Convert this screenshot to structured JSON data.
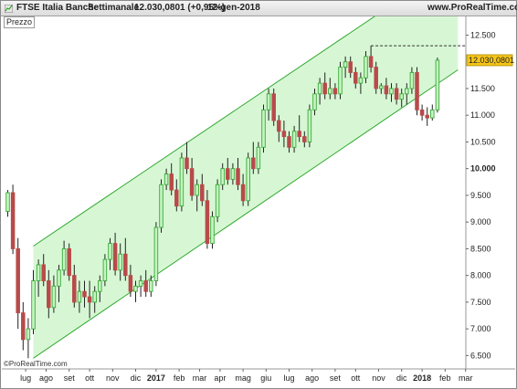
{
  "header": {
    "instrument": "FTSE Italia Banche",
    "timeframe": "Settimanale",
    "last_value": "12.030,0801 (+0,95%)",
    "date": "12-gen-2018",
    "site": "www.ProRealTime.com"
  },
  "panel_label": "Prezzo",
  "watermark": "©ProRealTime.com",
  "chart_data": {
    "type": "candlestick",
    "title": "FTSE Italia Banche",
    "period": "Settimanale",
    "ylim": [
      6250,
      12850
    ],
    "y_ticks": [
      {
        "value": 12500,
        "label": "12.500"
      },
      {
        "value": 11500,
        "label": "11.500"
      },
      {
        "value": 11000,
        "label": "11.000"
      },
      {
        "value": 10500,
        "label": "10.500"
      },
      {
        "value": 10000,
        "label": "10.000",
        "bold": true
      },
      {
        "value": 9500,
        "label": "9.500"
      },
      {
        "value": 9000,
        "label": "9.000"
      },
      {
        "value": 8500,
        "label": "8.500"
      },
      {
        "value": 8000,
        "label": "8.000"
      },
      {
        "value": 7500,
        "label": "7.500"
      },
      {
        "value": 7000,
        "label": "7.000"
      },
      {
        "value": 6500,
        "label": "6.500"
      }
    ],
    "current_price": {
      "value": 12030.08,
      "label": "12.030,0801",
      "color": "#f5c518"
    },
    "resistance_level": 12300,
    "x_ticks": [
      {
        "label": "lug",
        "index": 3.5
      },
      {
        "label": "ago",
        "index": 7.5
      },
      {
        "label": "set",
        "index": 12
      },
      {
        "label": "ott",
        "index": 16
      },
      {
        "label": "nov",
        "index": 20.5
      },
      {
        "label": "dic",
        "index": 25
      },
      {
        "label": "2017",
        "index": 29,
        "bold": true
      },
      {
        "label": "feb",
        "index": 33.5
      },
      {
        "label": "mar",
        "index": 37.5
      },
      {
        "label": "apr",
        "index": 41.5
      },
      {
        "label": "mag",
        "index": 46
      },
      {
        "label": "giu",
        "index": 50.5
      },
      {
        "label": "lug",
        "index": 55
      },
      {
        "label": "ago",
        "index": 59.5
      },
      {
        "label": "set",
        "index": 64
      },
      {
        "label": "ott",
        "index": 68
      },
      {
        "label": "nov",
        "index": 72.5
      },
      {
        "label": "dic",
        "index": 77
      },
      {
        "label": "2018",
        "index": 81,
        "bold": true
      },
      {
        "label": "feb",
        "index": 85.5
      },
      {
        "label": "mar",
        "index": 89.5
      }
    ],
    "channel": {
      "start_index": 5,
      "end_index": 88,
      "upper": [
        8550,
        13900
      ],
      "lower": [
        6450,
        11850
      ],
      "fill": "#d7f7d4",
      "line": "#2fa82f"
    },
    "colors": {
      "up": "#3aa83a",
      "up_fill": "#c5f5c0",
      "down": "#b84a4a",
      "down_fill": "#b84a4a",
      "wick": "#222222"
    },
    "candles": [
      [
        9200,
        9600,
        9100,
        9550
      ],
      [
        9550,
        9700,
        8400,
        8500
      ],
      [
        8500,
        8700,
        7000,
        7300
      ],
      [
        7300,
        7500,
        6600,
        6800
      ],
      [
        6800,
        7200,
        6450,
        7000
      ],
      [
        7000,
        8100,
        6900,
        7900
      ],
      [
        7900,
        8300,
        7600,
        8200
      ],
      [
        8200,
        8400,
        7800,
        7900
      ],
      [
        7900,
        8100,
        7200,
        7400
      ],
      [
        7400,
        8000,
        7300,
        7800
      ],
      [
        7800,
        8200,
        7500,
        8100
      ],
      [
        8100,
        8650,
        8000,
        8500
      ],
      [
        8500,
        8600,
        7900,
        8000
      ],
      [
        8000,
        8200,
        7400,
        7500
      ],
      [
        7500,
        7900,
        7300,
        7700
      ],
      [
        7700,
        7900,
        7400,
        7600
      ],
      [
        7600,
        7900,
        7200,
        7500
      ],
      [
        7500,
        7800,
        7300,
        7700
      ],
      [
        7700,
        8000,
        7500,
        7900
      ],
      [
        7900,
        8400,
        7800,
        8300
      ],
      [
        8300,
        8700,
        8100,
        8600
      ],
      [
        8600,
        8800,
        8000,
        8100
      ],
      [
        8100,
        8600,
        7900,
        8400
      ],
      [
        8400,
        8700,
        7900,
        8000
      ],
      [
        8000,
        8200,
        7600,
        7700
      ],
      [
        7700,
        7900,
        7500,
        7800
      ],
      [
        7800,
        8000,
        7600,
        7900
      ],
      [
        7900,
        8100,
        7600,
        7700
      ],
      [
        7700,
        8000,
        7600,
        7900
      ],
      [
        7900,
        9000,
        7800,
        8900
      ],
      [
        8900,
        9800,
        8800,
        9700
      ],
      [
        9700,
        10000,
        9600,
        9900
      ],
      [
        9900,
        10100,
        9500,
        9600
      ],
      [
        9600,
        9800,
        9200,
        9300
      ],
      [
        9300,
        10300,
        9200,
        10200
      ],
      [
        10200,
        10500,
        9900,
        10000
      ],
      [
        10000,
        10200,
        9400,
        9500
      ],
      [
        9500,
        9800,
        9200,
        9700
      ],
      [
        9700,
        9900,
        9300,
        9400
      ],
      [
        9400,
        9600,
        8500,
        8600
      ],
      [
        8600,
        9200,
        8500,
        9100
      ],
      [
        9100,
        9800,
        9000,
        9700
      ],
      [
        9700,
        10100,
        9600,
        10000
      ],
      [
        10000,
        10200,
        9700,
        9800
      ],
      [
        9800,
        10100,
        9700,
        10000
      ],
      [
        10000,
        10200,
        9600,
        9700
      ],
      [
        9700,
        9900,
        9300,
        9400
      ],
      [
        9400,
        10300,
        9300,
        10200
      ],
      [
        10200,
        10500,
        9900,
        10000
      ],
      [
        10000,
        10500,
        9900,
        10400
      ],
      [
        10400,
        11200,
        10300,
        11100
      ],
      [
        11100,
        11500,
        10900,
        11400
      ],
      [
        11400,
        11500,
        10800,
        10900
      ],
      [
        10900,
        11000,
        10500,
        10700
      ],
      [
        10700,
        10900,
        10400,
        10600
      ],
      [
        10600,
        10700,
        10300,
        10400
      ],
      [
        10400,
        10800,
        10300,
        10700
      ],
      [
        10700,
        11000,
        10500,
        10600
      ],
      [
        10600,
        10700,
        10400,
        10500
      ],
      [
        10500,
        11200,
        10400,
        11100
      ],
      [
        11100,
        11500,
        11000,
        11400
      ],
      [
        11400,
        11700,
        11200,
        11600
      ],
      [
        11600,
        11800,
        11300,
        11400
      ],
      [
        11400,
        11700,
        11300,
        11500
      ],
      [
        11500,
        11600,
        11300,
        11400
      ],
      [
        11400,
        12000,
        11300,
        11900
      ],
      [
        11900,
        12100,
        11700,
        12000
      ],
      [
        12000,
        12100,
        11700,
        11800
      ],
      [
        11800,
        11900,
        11500,
        11600
      ],
      [
        11600,
        11800,
        11400,
        11700
      ],
      [
        11700,
        12200,
        11600,
        12100
      ],
      [
        12100,
        12300,
        11800,
        11900
      ],
      [
        11900,
        12000,
        11400,
        11500
      ],
      [
        11500,
        11600,
        11400,
        11550
      ],
      [
        11550,
        11700,
        11300,
        11400
      ],
      [
        11400,
        11600,
        11250,
        11500
      ],
      [
        11500,
        11600,
        11200,
        11300
      ],
      [
        11300,
        11500,
        11150,
        11400
      ],
      [
        11400,
        11600,
        11200,
        11500
      ],
      [
        11500,
        11900,
        11400,
        11800
      ],
      [
        11800,
        11900,
        11000,
        11100
      ],
      [
        11100,
        11200,
        10900,
        11000
      ],
      [
        11000,
        11150,
        10800,
        10950
      ],
      [
        10950,
        11200,
        10900,
        11100
      ],
      [
        11100,
        12080,
        11050,
        12030
      ]
    ]
  }
}
